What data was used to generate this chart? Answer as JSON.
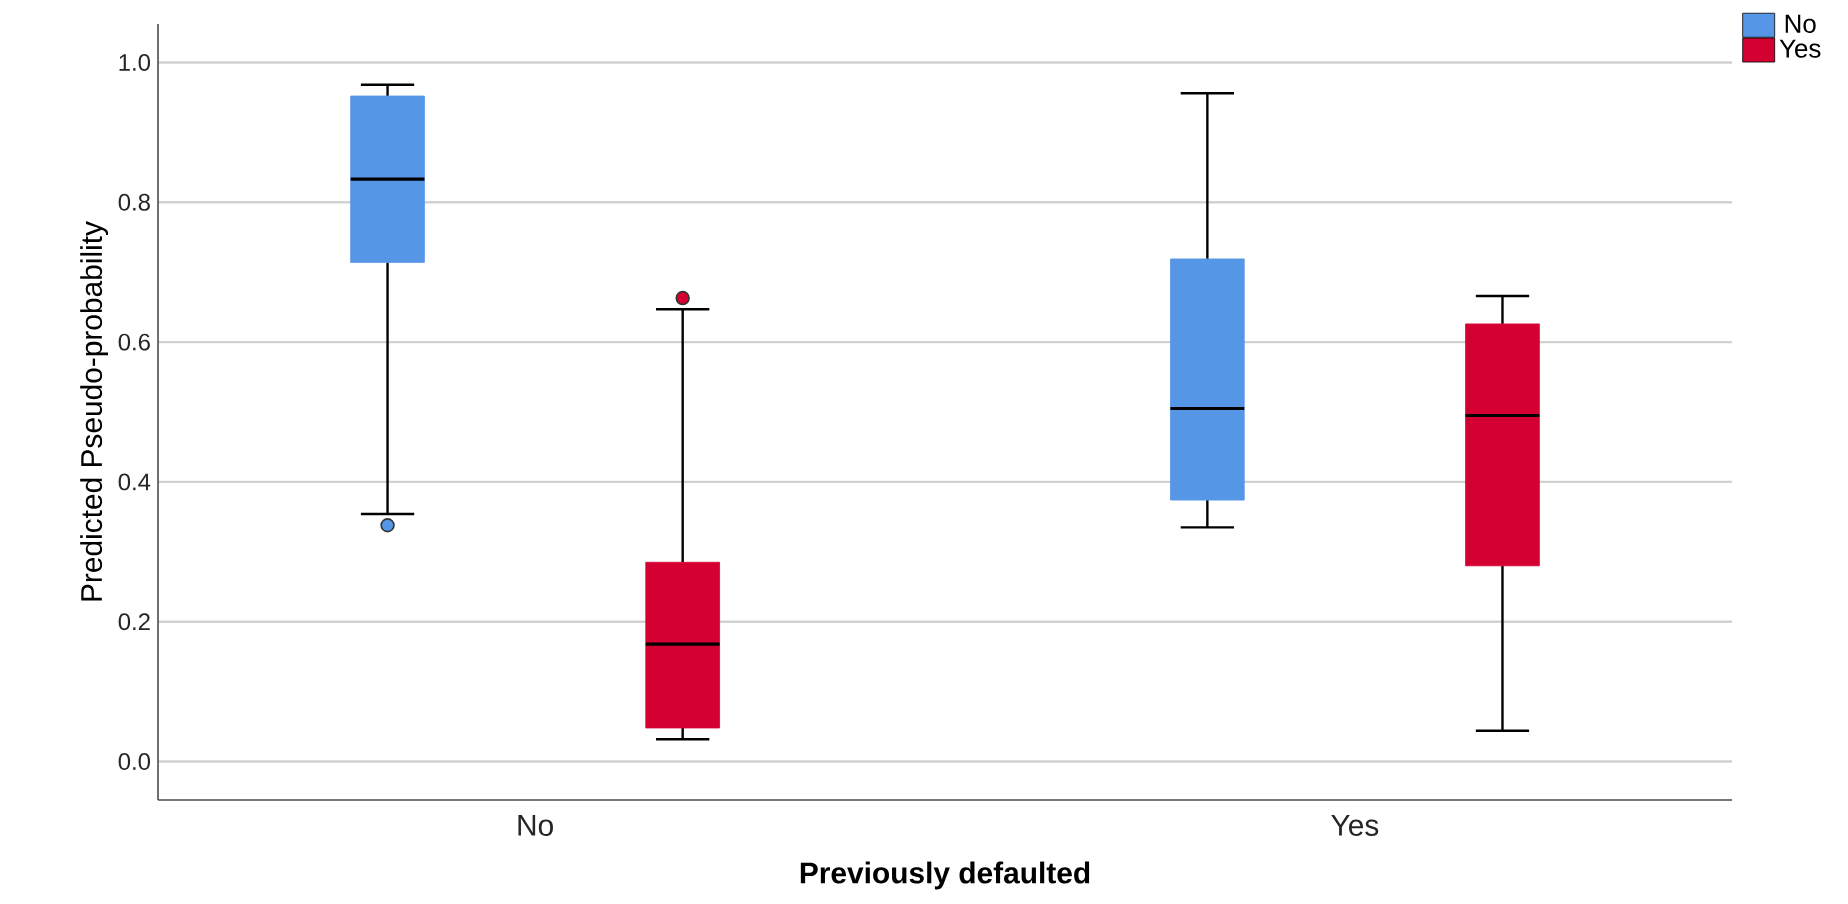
{
  "chart_data": {
    "type": "box",
    "xlabel": "Previously defaulted",
    "ylabel": "Predicted Pseudo-probability",
    "categories": [
      "No",
      "Yes"
    ],
    "series": [
      {
        "name": "No",
        "color": "#5596e6",
        "boxes": [
          {
            "low": 0.354,
            "q1": 0.714,
            "median": 0.833,
            "q3": 0.952,
            "high": 0.968,
            "outliers": [
              0.338
            ]
          },
          {
            "low": 0.335,
            "q1": 0.374,
            "median": 0.505,
            "q3": 0.719,
            "high": 0.956
          }
        ]
      },
      {
        "name": "Yes",
        "color": "#d50032",
        "boxes": [
          {
            "low": 0.032,
            "q1": 0.048,
            "median": 0.168,
            "q3": 0.285,
            "high": 0.647,
            "outliers": [
              0.663
            ]
          },
          {
            "low": 0.044,
            "q1": 0.28,
            "median": 0.495,
            "q3": 0.626,
            "high": 0.666
          }
        ]
      }
    ],
    "ylim": [
      -0.055,
      1.055
    ],
    "yticks": [
      {
        "value": 0,
        "label": "0.0"
      },
      {
        "value": 0.2,
        "label": "0.2"
      },
      {
        "value": 0.4,
        "label": "0.4"
      },
      {
        "value": 0.6,
        "label": "0.6"
      },
      {
        "value": 0.8,
        "label": "0.8"
      },
      {
        "value": 1,
        "label": "1.0"
      }
    ],
    "grid": "y",
    "legend": "top right"
  }
}
